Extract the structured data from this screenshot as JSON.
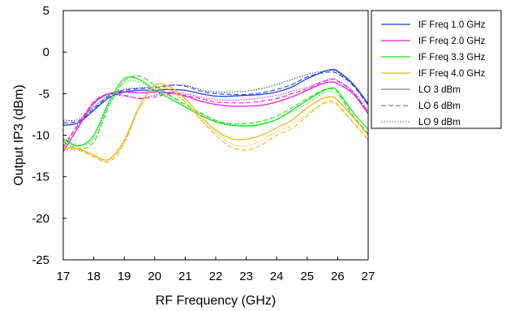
{
  "chart_data": {
    "type": "line",
    "xlabel": "RF Frequency (GHz)",
    "ylabel": "Output IP3 (dBm)",
    "xlim": [
      17,
      27
    ],
    "ylim": [
      -25,
      5
    ],
    "xticks": [
      17,
      18,
      19,
      20,
      21,
      22,
      23,
      24,
      25,
      26,
      27
    ],
    "yticks": [
      -25,
      -20,
      -15,
      -10,
      -5,
      0,
      5
    ],
    "grid": false,
    "legend_position": "right",
    "legend": [
      {
        "label": "IF Freq 1.0 GHz",
        "color": "#1f3fd6",
        "style": "solid"
      },
      {
        "label": "IF Freq 2.0 GHz",
        "color": "#e01fd2",
        "style": "solid"
      },
      {
        "label": "IF Freq 3.3 GHz",
        "color": "#22e022",
        "style": "solid"
      },
      {
        "label": "IF Freq 4.0 GHz",
        "color": "#f2b51b",
        "style": "solid"
      },
      {
        "label": "LO 3 dBm",
        "color": "#808080",
        "style": "solid"
      },
      {
        "label": "LO 6 dBm",
        "color": "#808080",
        "style": "dashed"
      },
      {
        "label": "LO 9 dBm",
        "color": "#808080",
        "style": "dotted"
      }
    ],
    "x": [
      17,
      17.5,
      18,
      18.5,
      19,
      19.5,
      20,
      20.5,
      21,
      21.5,
      22,
      22.5,
      23,
      23.5,
      24,
      24.5,
      25,
      25.5,
      25.8,
      26,
      26.5,
      27
    ],
    "series": [
      {
        "if": "IF Freq 1.0 GHz",
        "lo": "LO 3 dBm",
        "color": "#1f3fd6",
        "style": "solid",
        "values": [
          -8.8,
          -8.5,
          -7.0,
          -5.5,
          -4.8,
          -4.6,
          -4.6,
          -4.5,
          -4.6,
          -5.0,
          -5.3,
          -5.3,
          -5.2,
          -5.1,
          -4.8,
          -4.2,
          -3.2,
          -2.4,
          -2.1,
          -2.3,
          -3.8,
          -6.2
        ]
      },
      {
        "if": "IF Freq 1.0 GHz",
        "lo": "LO 6 dBm",
        "color": "#1f3fd6",
        "style": "dashed",
        "values": [
          -8.5,
          -8.3,
          -6.8,
          -5.3,
          -4.6,
          -4.4,
          -4.3,
          -4.0,
          -4.1,
          -4.7,
          -5.0,
          -5.1,
          -5.1,
          -4.9,
          -4.5,
          -3.9,
          -3.0,
          -2.5,
          -2.4,
          -2.6,
          -4.0,
          -6.4
        ]
      },
      {
        "if": "IF Freq 1.0 GHz",
        "lo": "LO 9 dBm",
        "color": "#1f3fd6",
        "style": "dotted",
        "values": [
          -8.2,
          -8.1,
          -6.6,
          -5.2,
          -4.5,
          -4.3,
          -4.2,
          -4.0,
          -4.0,
          -4.5,
          -4.8,
          -4.8,
          -4.7,
          -4.4,
          -3.9,
          -3.3,
          -2.7,
          -2.3,
          -2.2,
          -2.4,
          -3.9,
          -6.3
        ]
      },
      {
        "if": "IF Freq 2.0 GHz",
        "lo": "LO 3 dBm",
        "color": "#e01fd2",
        "style": "solid",
        "values": [
          -12.0,
          -9.0,
          -6.2,
          -5.0,
          -4.8,
          -4.9,
          -4.8,
          -4.9,
          -5.3,
          -5.9,
          -6.3,
          -6.5,
          -6.5,
          -6.4,
          -6.0,
          -5.4,
          -4.6,
          -3.8,
          -3.6,
          -3.8,
          -5.0,
          -7.4
        ]
      },
      {
        "if": "IF Freq 2.0 GHz",
        "lo": "LO 6 dBm",
        "color": "#e01fd2",
        "style": "dashed",
        "values": [
          -11.5,
          -8.7,
          -6.0,
          -5.0,
          -5.2,
          -5.6,
          -5.4,
          -5.0,
          -5.2,
          -5.6,
          -6.0,
          -6.1,
          -6.1,
          -5.9,
          -5.6,
          -5.0,
          -4.4,
          -3.6,
          -3.3,
          -3.5,
          -4.8,
          -7.2
        ]
      },
      {
        "if": "IF Freq 2.0 GHz",
        "lo": "LO 9 dBm",
        "color": "#e01fd2",
        "style": "dotted",
        "values": [
          -11.2,
          -8.6,
          -6.0,
          -5.1,
          -5.3,
          -5.5,
          -5.2,
          -4.8,
          -5.0,
          -5.4,
          -5.7,
          -5.8,
          -5.7,
          -5.5,
          -5.2,
          -4.7,
          -4.2,
          -3.5,
          -3.2,
          -3.4,
          -4.7,
          -7.1
        ]
      },
      {
        "if": "IF Freq 3.3 GHz",
        "lo": "LO 3 dBm",
        "color": "#22e022",
        "style": "solid",
        "values": [
          -10.5,
          -11.3,
          -10.0,
          -6.0,
          -3.2,
          -3.3,
          -4.6,
          -5.6,
          -6.6,
          -7.6,
          -8.4,
          -8.8,
          -8.9,
          -8.7,
          -8.1,
          -7.0,
          -5.8,
          -4.7,
          -4.3,
          -4.7,
          -7.2,
          -9.3
        ]
      },
      {
        "if": "IF Freq 3.3 GHz",
        "lo": "LO 6 dBm",
        "color": "#22e022",
        "style": "dashed",
        "values": [
          -10.8,
          -11.6,
          -10.8,
          -6.5,
          -3.5,
          -2.9,
          -4.0,
          -5.2,
          -6.3,
          -7.3,
          -8.2,
          -8.6,
          -8.6,
          -8.3,
          -7.7,
          -6.7,
          -5.6,
          -4.6,
          -4.4,
          -4.8,
          -7.6,
          -9.8
        ]
      },
      {
        "if": "IF Freq 3.3 GHz",
        "lo": "LO 9 dBm",
        "color": "#22e022",
        "style": "dotted",
        "values": [
          -10.4,
          -11.2,
          -10.4,
          -6.3,
          -3.7,
          -3.6,
          -4.5,
          -5.3,
          -6.5,
          -7.4,
          -8.3,
          -8.7,
          -8.8,
          -8.6,
          -8.1,
          -7.2,
          -6.2,
          -5.0,
          -4.7,
          -5.1,
          -7.7,
          -10.0
        ]
      },
      {
        "if": "IF Freq 4.0 GHz",
        "lo": "LO 3 dBm",
        "color": "#f2b51b",
        "style": "solid",
        "values": [
          -11.5,
          -11.6,
          -12.4,
          -12.9,
          -10.6,
          -6.5,
          -4.0,
          -4.2,
          -5.6,
          -7.7,
          -9.4,
          -10.4,
          -10.5,
          -10.0,
          -9.1,
          -8.2,
          -6.7,
          -5.6,
          -5.4,
          -5.8,
          -7.8,
          -10.0
        ]
      },
      {
        "if": "IF Freq 4.0 GHz",
        "lo": "LO 6 dBm",
        "color": "#f2b51b",
        "style": "dashed",
        "values": [
          -11.7,
          -11.8,
          -12.6,
          -13.2,
          -11.0,
          -6.5,
          -4.3,
          -4.5,
          -6.0,
          -8.1,
          -10.0,
          -11.4,
          -11.8,
          -11.2,
          -10.0,
          -9.2,
          -7.7,
          -6.2,
          -5.9,
          -6.3,
          -8.4,
          -10.5
        ]
      },
      {
        "if": "IF Freq 4.0 GHz",
        "lo": "LO 9 dBm",
        "color": "#f2b51b",
        "style": "dotted",
        "values": [
          -11.6,
          -11.7,
          -12.5,
          -13.0,
          -10.8,
          -6.8,
          -4.6,
          -4.6,
          -6.0,
          -8.0,
          -9.7,
          -11.0,
          -11.3,
          -10.6,
          -9.6,
          -8.8,
          -7.4,
          -6.3,
          -6.1,
          -6.5,
          -8.5,
          -10.5
        ]
      }
    ]
  }
}
